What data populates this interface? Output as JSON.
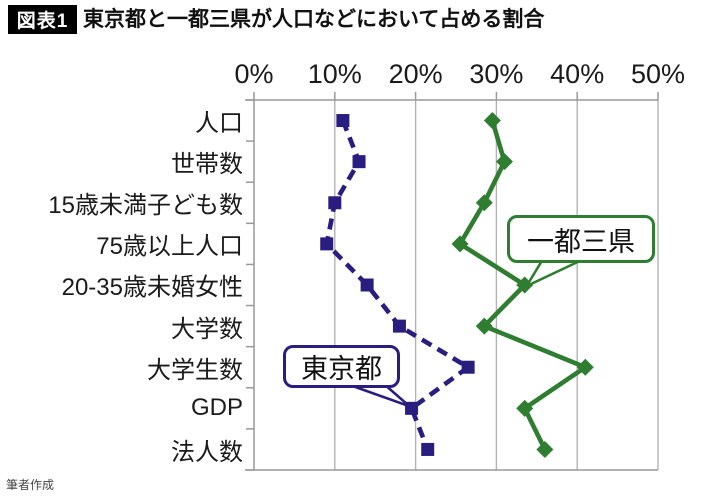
{
  "header": {
    "tag": "図表1",
    "title": "東京都と一都三県が人口などにおいて占める割合"
  },
  "source": "筆者作成",
  "chart_data": {
    "type": "line",
    "orientation": "horizontal-categories",
    "title": "東京都と一都三県が人口などにおいて占める割合",
    "categories": [
      "人口",
      "世帯数",
      "15歳未満子ども数",
      "75歳以上人口",
      "20-35歳未婚女性",
      "大学数",
      "大学生数",
      "GDP",
      "法人数"
    ],
    "x_ticks": [
      "0%",
      "10%",
      "20%",
      "30%",
      "40%",
      "50%"
    ],
    "xlim": [
      0,
      50
    ],
    "grid": true,
    "legend_position": "callouts-on-plot",
    "series": [
      {
        "id": "tokyo",
        "name": "東京都",
        "values": [
          11,
          13,
          10,
          9,
          14,
          18,
          26.5,
          19.5,
          21.5
        ],
        "color": "#291d80",
        "line_style": "dashed",
        "marker": "square"
      },
      {
        "id": "itto-sanken",
        "name": "一都三県",
        "values": [
          29.5,
          31,
          28.5,
          25.5,
          33.5,
          28.5,
          41,
          33.5,
          36
        ],
        "color": "#2f7d31",
        "line_style": "solid",
        "marker": "diamond"
      }
    ],
    "colors": {
      "gridline": "#b3b3b3",
      "axis": "#999999",
      "text": "#1a1a1a"
    }
  }
}
